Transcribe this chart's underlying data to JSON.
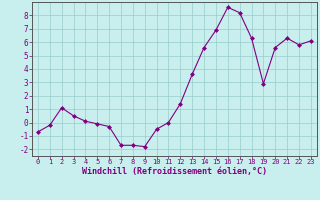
{
  "x": [
    0,
    1,
    2,
    3,
    4,
    5,
    6,
    7,
    8,
    9,
    10,
    11,
    12,
    13,
    14,
    15,
    16,
    17,
    18,
    19,
    20,
    21,
    22,
    23
  ],
  "y": [
    -0.7,
    -0.2,
    1.1,
    0.5,
    0.1,
    -0.1,
    -0.3,
    -1.7,
    -1.7,
    -1.8,
    -0.5,
    0.0,
    1.4,
    3.6,
    5.6,
    6.9,
    8.6,
    8.2,
    6.3,
    2.9,
    5.6,
    6.3,
    5.8,
    6.1
  ],
  "xlabel": "Windchill (Refroidissement éolien,°C)",
  "ylim": [
    -2.5,
    9.0
  ],
  "xlim": [
    -0.5,
    23.5
  ],
  "line_color": "#800080",
  "marker_color": "#800080",
  "bg_color": "#c8eeee",
  "grid_color": "#99cccc",
  "tick_label_color": "#800080",
  "xlabel_color": "#800080",
  "yticks": [
    -2,
    -1,
    0,
    1,
    2,
    3,
    4,
    5,
    6,
    7,
    8
  ],
  "xticks": [
    0,
    1,
    2,
    3,
    4,
    5,
    6,
    7,
    8,
    9,
    10,
    11,
    12,
    13,
    14,
    15,
    16,
    17,
    18,
    19,
    20,
    21,
    22,
    23
  ]
}
